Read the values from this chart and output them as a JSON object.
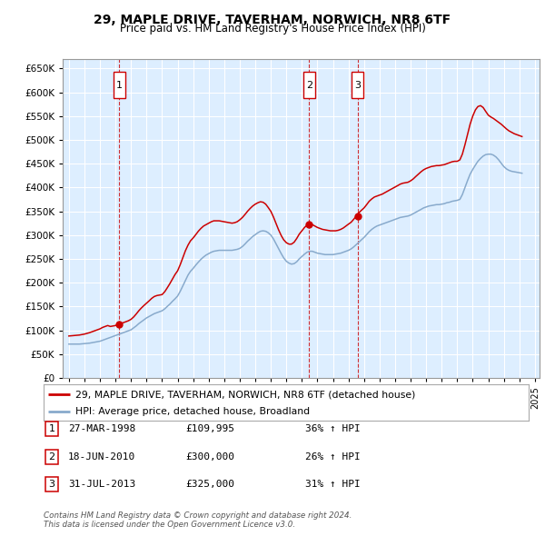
{
  "title": "29, MAPLE DRIVE, TAVERHAM, NORWICH, NR8 6TF",
  "subtitle": "Price paid vs. HM Land Registry's House Price Index (HPI)",
  "legend_line1": "29, MAPLE DRIVE, TAVERHAM, NORWICH, NR8 6TF (detached house)",
  "legend_line2": "HPI: Average price, detached house, Broadland",
  "footer1": "Contains HM Land Registry data © Crown copyright and database right 2024.",
  "footer2": "This data is licensed under the Open Government Licence v3.0.",
  "transactions": [
    {
      "num": 1,
      "date": "27-MAR-1998",
      "price": 109995,
      "pct": "36%",
      "dir": "↑",
      "year": 1998.23
    },
    {
      "num": 2,
      "date": "18-JUN-2010",
      "price": 300000,
      "pct": "26%",
      "dir": "↑",
      "year": 2010.46
    },
    {
      "num": 3,
      "date": "31-JUL-2013",
      "price": 325000,
      "pct": "31%",
      "dir": "↑",
      "year": 2013.58
    }
  ],
  "red_line_color": "#cc0000",
  "blue_line_color": "#88aacc",
  "bg_color": "#ddeeff",
  "grid_color": "#ffffff",
  "marker_box_color": "#cc0000",
  "ylim": [
    0,
    670000
  ],
  "yticks": [
    0,
    50000,
    100000,
    150000,
    200000,
    250000,
    300000,
    350000,
    400000,
    450000,
    500000,
    550000,
    600000,
    650000
  ],
  "hpi_data": {
    "years": [
      1995.0,
      1995.17,
      1995.33,
      1995.5,
      1995.67,
      1995.83,
      1996.0,
      1996.17,
      1996.33,
      1996.5,
      1996.67,
      1996.83,
      1997.0,
      1997.17,
      1997.33,
      1997.5,
      1997.67,
      1997.83,
      1998.0,
      1998.17,
      1998.33,
      1998.5,
      1998.67,
      1998.83,
      1999.0,
      1999.17,
      1999.33,
      1999.5,
      1999.67,
      1999.83,
      2000.0,
      2000.17,
      2000.33,
      2000.5,
      2000.67,
      2000.83,
      2001.0,
      2001.17,
      2001.33,
      2001.5,
      2001.67,
      2001.83,
      2002.0,
      2002.17,
      2002.33,
      2002.5,
      2002.67,
      2002.83,
      2003.0,
      2003.17,
      2003.33,
      2003.5,
      2003.67,
      2003.83,
      2004.0,
      2004.17,
      2004.33,
      2004.5,
      2004.67,
      2004.83,
      2005.0,
      2005.17,
      2005.33,
      2005.5,
      2005.67,
      2005.83,
      2006.0,
      2006.17,
      2006.33,
      2006.5,
      2006.67,
      2006.83,
      2007.0,
      2007.17,
      2007.33,
      2007.5,
      2007.67,
      2007.83,
      2008.0,
      2008.17,
      2008.33,
      2008.5,
      2008.67,
      2008.83,
      2009.0,
      2009.17,
      2009.33,
      2009.5,
      2009.67,
      2009.83,
      2010.0,
      2010.17,
      2010.33,
      2010.5,
      2010.67,
      2010.83,
      2011.0,
      2011.17,
      2011.33,
      2011.5,
      2011.67,
      2011.83,
      2012.0,
      2012.17,
      2012.33,
      2012.5,
      2012.67,
      2012.83,
      2013.0,
      2013.17,
      2013.33,
      2013.5,
      2013.67,
      2013.83,
      2014.0,
      2014.17,
      2014.33,
      2014.5,
      2014.67,
      2014.83,
      2015.0,
      2015.17,
      2015.33,
      2015.5,
      2015.67,
      2015.83,
      2016.0,
      2016.17,
      2016.33,
      2016.5,
      2016.67,
      2016.83,
      2017.0,
      2017.17,
      2017.33,
      2017.5,
      2017.67,
      2017.83,
      2018.0,
      2018.17,
      2018.33,
      2018.5,
      2018.67,
      2018.83,
      2019.0,
      2019.17,
      2019.33,
      2019.5,
      2019.67,
      2019.83,
      2020.0,
      2020.17,
      2020.33,
      2020.5,
      2020.67,
      2020.83,
      2021.0,
      2021.17,
      2021.33,
      2021.5,
      2021.67,
      2021.83,
      2022.0,
      2022.17,
      2022.33,
      2022.5,
      2022.67,
      2022.83,
      2023.0,
      2023.17,
      2023.33,
      2023.5,
      2023.67,
      2023.83,
      2024.0,
      2024.17
    ],
    "values": [
      71000,
      71000,
      71000,
      71000,
      71000,
      71500,
      72000,
      72500,
      73000,
      74000,
      75000,
      76000,
      77000,
      79000,
      81000,
      83000,
      85000,
      87000,
      89000,
      91000,
      93000,
      95000,
      97000,
      99000,
      101000,
      105000,
      109000,
      114000,
      118000,
      122000,
      126000,
      129000,
      132000,
      135000,
      137000,
      139000,
      141000,
      145000,
      150000,
      155000,
      161000,
      166000,
      172000,
      182000,
      193000,
      205000,
      216000,
      224000,
      230000,
      237000,
      243000,
      249000,
      254000,
      258000,
      261000,
      264000,
      266000,
      267000,
      268000,
      268000,
      268000,
      268000,
      268000,
      268000,
      269000,
      270000,
      272000,
      276000,
      281000,
      287000,
      292000,
      297000,
      301000,
      305000,
      308000,
      309000,
      308000,
      305000,
      300000,
      292000,
      282000,
      271000,
      261000,
      252000,
      245000,
      241000,
      239000,
      240000,
      244000,
      250000,
      255000,
      260000,
      264000,
      266000,
      266000,
      264000,
      262000,
      261000,
      260000,
      259000,
      259000,
      259000,
      259000,
      260000,
      261000,
      262000,
      264000,
      266000,
      268000,
      271000,
      275000,
      280000,
      285000,
      290000,
      295000,
      301000,
      307000,
      312000,
      316000,
      319000,
      321000,
      323000,
      325000,
      327000,
      329000,
      331000,
      333000,
      335000,
      337000,
      338000,
      339000,
      340000,
      342000,
      345000,
      348000,
      351000,
      354000,
      357000,
      359000,
      361000,
      362000,
      363000,
      364000,
      364000,
      365000,
      366000,
      368000,
      369000,
      371000,
      372000,
      373000,
      375000,
      385000,
      400000,
      415000,
      428000,
      438000,
      447000,
      455000,
      461000,
      466000,
      469000,
      470000,
      470000,
      468000,
      464000,
      458000,
      451000,
      444000,
      439000,
      436000,
      434000,
      433000,
      432000,
      431000,
      430000
    ]
  },
  "red_data": {
    "years": [
      1995.0,
      1995.17,
      1995.33,
      1995.5,
      1995.67,
      1995.83,
      1996.0,
      1996.17,
      1996.33,
      1996.5,
      1996.67,
      1996.83,
      1997.0,
      1997.17,
      1997.33,
      1997.5,
      1997.67,
      1997.83,
      1998.0,
      1998.17,
      1998.33,
      1998.5,
      1998.67,
      1998.83,
      1999.0,
      1999.17,
      1999.33,
      1999.5,
      1999.67,
      1999.83,
      2000.0,
      2000.17,
      2000.33,
      2000.5,
      2000.67,
      2000.83,
      2001.0,
      2001.17,
      2001.33,
      2001.5,
      2001.67,
      2001.83,
      2002.0,
      2002.17,
      2002.33,
      2002.5,
      2002.67,
      2002.83,
      2003.0,
      2003.17,
      2003.33,
      2003.5,
      2003.67,
      2003.83,
      2004.0,
      2004.17,
      2004.33,
      2004.5,
      2004.67,
      2004.83,
      2005.0,
      2005.17,
      2005.33,
      2005.5,
      2005.67,
      2005.83,
      2006.0,
      2006.17,
      2006.33,
      2006.5,
      2006.67,
      2006.83,
      2007.0,
      2007.17,
      2007.33,
      2007.5,
      2007.67,
      2007.83,
      2008.0,
      2008.17,
      2008.33,
      2008.5,
      2008.67,
      2008.83,
      2009.0,
      2009.17,
      2009.33,
      2009.5,
      2009.67,
      2009.83,
      2010.0,
      2010.17,
      2010.33,
      2010.5,
      2010.67,
      2010.83,
      2011.0,
      2011.17,
      2011.33,
      2011.5,
      2011.67,
      2011.83,
      2012.0,
      2012.17,
      2012.33,
      2012.5,
      2012.67,
      2012.83,
      2013.0,
      2013.17,
      2013.33,
      2013.5,
      2013.67,
      2013.83,
      2014.0,
      2014.17,
      2014.33,
      2014.5,
      2014.67,
      2014.83,
      2015.0,
      2015.17,
      2015.33,
      2015.5,
      2015.67,
      2015.83,
      2016.0,
      2016.17,
      2016.33,
      2016.5,
      2016.67,
      2016.83,
      2017.0,
      2017.17,
      2017.33,
      2017.5,
      2017.67,
      2017.83,
      2018.0,
      2018.17,
      2018.33,
      2018.5,
      2018.67,
      2018.83,
      2019.0,
      2019.17,
      2019.33,
      2019.5,
      2019.67,
      2019.83,
      2020.0,
      2020.17,
      2020.33,
      2020.5,
      2020.67,
      2020.83,
      2021.0,
      2021.17,
      2021.33,
      2021.5,
      2021.67,
      2021.83,
      2022.0,
      2022.17,
      2022.33,
      2022.5,
      2022.67,
      2022.83,
      2023.0,
      2023.17,
      2023.33,
      2023.5,
      2023.67,
      2023.83,
      2024.0,
      2024.17
    ],
    "values": [
      88000,
      88500,
      89000,
      89500,
      90000,
      91000,
      92000,
      93500,
      95000,
      97000,
      99000,
      101000,
      103000,
      106000,
      108000,
      110000,
      108000,
      109000,
      110000,
      112000,
      114000,
      116000,
      118000,
      120000,
      123000,
      128000,
      134000,
      141000,
      147000,
      152000,
      157000,
      162000,
      167000,
      171000,
      173000,
      174000,
      175000,
      181000,
      189000,
      198000,
      208000,
      217000,
      225000,
      238000,
      252000,
      267000,
      279000,
      288000,
      294000,
      301000,
      308000,
      314000,
      319000,
      322000,
      325000,
      328000,
      330000,
      330000,
      330000,
      329000,
      328000,
      327000,
      326000,
      325000,
      326000,
      328000,
      332000,
      337000,
      343000,
      350000,
      356000,
      361000,
      365000,
      368000,
      370000,
      369000,
      365000,
      358000,
      350000,
      338000,
      325000,
      311000,
      299000,
      290000,
      284000,
      281000,
      281000,
      285000,
      293000,
      302000,
      309000,
      316000,
      321000,
      323000,
      322000,
      319000,
      316000,
      314000,
      312000,
      311000,
      310000,
      309000,
      309000,
      309000,
      310000,
      312000,
      315000,
      319000,
      323000,
      327000,
      333000,
      340000,
      347000,
      352000,
      357000,
      364000,
      371000,
      376000,
      380000,
      382000,
      384000,
      386000,
      389000,
      392000,
      395000,
      398000,
      401000,
      404000,
      407000,
      409000,
      410000,
      411000,
      414000,
      418000,
      423000,
      428000,
      433000,
      437000,
      440000,
      442000,
      444000,
      445000,
      446000,
      446000,
      447000,
      448000,
      450000,
      452000,
      454000,
      455000,
      455000,
      458000,
      470000,
      490000,
      512000,
      533000,
      550000,
      563000,
      570000,
      572000,
      568000,
      560000,
      552000,
      548000,
      545000,
      541000,
      537000,
      533000,
      528000,
      523000,
      519000,
      516000,
      513000,
      511000,
      509000,
      507000
    ]
  }
}
